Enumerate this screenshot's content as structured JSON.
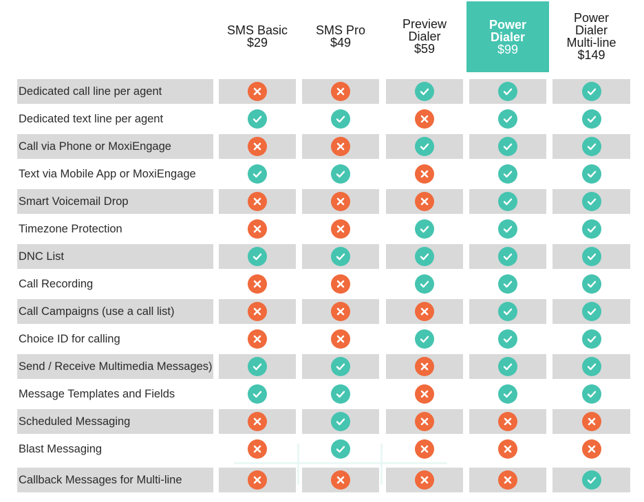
{
  "colors": {
    "accent": "#45c4b0",
    "no": "#f06a3c",
    "row_shade": "#d9d9d9"
  },
  "plans": [
    {
      "name": "SMS Basic",
      "price": "$29",
      "highlight": false
    },
    {
      "name": "SMS Pro",
      "price": "$49",
      "highlight": false
    },
    {
      "name": "Preview\nDialer",
      "price": "$59",
      "highlight": false
    },
    {
      "name": "Power\nDialer",
      "price": "$99",
      "highlight": true
    },
    {
      "name": "Power\nDialer\nMulti-line",
      "price": "$149",
      "highlight": false
    }
  ],
  "features": [
    {
      "label": "Dedicated call line per agent",
      "values": [
        false,
        false,
        true,
        true,
        true
      ]
    },
    {
      "label": "Dedicated text line per agent",
      "values": [
        true,
        true,
        false,
        true,
        true
      ]
    },
    {
      "label": "Call via Phone or MoxiEngage",
      "values": [
        false,
        false,
        true,
        true,
        true
      ]
    },
    {
      "label": "Text via Mobile App or MoxiEngage",
      "values": [
        true,
        true,
        false,
        true,
        true
      ]
    },
    {
      "label": "Smart Voicemail Drop",
      "values": [
        false,
        false,
        false,
        true,
        true
      ]
    },
    {
      "label": "Timezone Protection",
      "values": [
        false,
        false,
        true,
        true,
        true
      ]
    },
    {
      "label": "DNC List",
      "values": [
        true,
        true,
        true,
        true,
        true
      ]
    },
    {
      "label": "Call Recording",
      "values": [
        false,
        false,
        true,
        true,
        true
      ]
    },
    {
      "label": "Call Campaigns (use a call list)",
      "values": [
        false,
        false,
        false,
        true,
        true
      ]
    },
    {
      "label": "Choice ID for calling",
      "values": [
        false,
        false,
        true,
        true,
        true
      ]
    },
    {
      "label": "Send / Receive Multimedia Messages)",
      "values": [
        true,
        true,
        false,
        true,
        true
      ]
    },
    {
      "label": "Message Templates and Fields",
      "values": [
        true,
        true,
        false,
        true,
        true
      ]
    },
    {
      "label": "Scheduled Messaging",
      "values": [
        false,
        true,
        false,
        false,
        false
      ]
    },
    {
      "label": "Blast Messaging",
      "values": [
        false,
        true,
        false,
        false,
        false
      ]
    },
    {
      "label": "Callback Messages for Multi-line",
      "values": [
        false,
        false,
        false,
        false,
        true
      ]
    }
  ]
}
